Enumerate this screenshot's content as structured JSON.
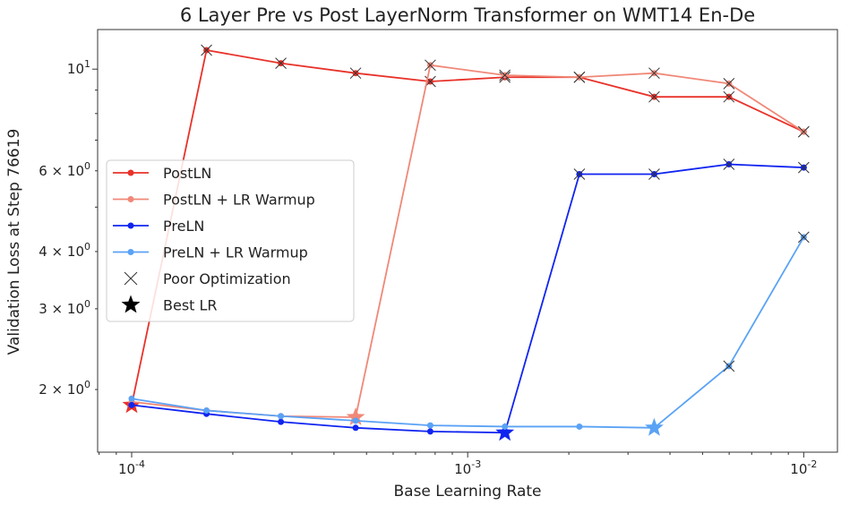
{
  "chart_data": {
    "type": "line",
    "title": "6 Layer Pre vs Post LayerNorm Transformer on WMT14 En-De",
    "xlabel": "Base Learning Rate",
    "ylabel": "Validation Loss at Step 76619",
    "xscale": "log",
    "yscale": "log",
    "xlim": [
      7.92e-05,
      0.0126
    ],
    "ylim": [
      1.46,
      12.2
    ],
    "xticks": [
      {
        "value": 0.0001,
        "label": "10^-4"
      },
      {
        "value": 0.001,
        "label": "10^-3"
      },
      {
        "value": 0.01,
        "label": "10^-2"
      }
    ],
    "yticks": [
      {
        "value": 10,
        "label": "10^1"
      },
      {
        "value": 6,
        "label": "6 × 10^0"
      },
      {
        "value": 4,
        "label": "4 × 10^0"
      },
      {
        "value": 3,
        "label": "3 × 10^0"
      },
      {
        "value": 2,
        "label": "2 × 10^0"
      }
    ],
    "grid": false,
    "legend_position": "center-left",
    "x": [
      0.0001,
      0.000167,
      0.000278,
      0.000464,
      0.000774,
      0.00129,
      0.00215,
      0.00359,
      0.00599,
      0.01
    ],
    "series": [
      {
        "name": "PostLN",
        "color": "#e8322a",
        "values": [
          1.85,
          11.0,
          10.3,
          9.8,
          9.4,
          9.6,
          9.6,
          8.7,
          8.7,
          7.3
        ],
        "poor_optimization": [
          false,
          true,
          true,
          true,
          true,
          true,
          true,
          true,
          true,
          true
        ],
        "best_index": 0
      },
      {
        "name": "PostLN + LR Warmup",
        "color": "#f08878",
        "values": [
          1.88,
          1.8,
          1.75,
          1.74,
          10.2,
          9.7,
          9.6,
          9.8,
          9.3,
          7.3
        ],
        "poor_optimization": [
          false,
          false,
          false,
          false,
          true,
          true,
          true,
          true,
          true,
          true
        ],
        "best_index": 3
      },
      {
        "name": "PreLN",
        "color": "#1024f0",
        "values": [
          1.85,
          1.77,
          1.7,
          1.65,
          1.62,
          1.61,
          5.9,
          5.9,
          6.2,
          6.1
        ],
        "poor_optimization": [
          false,
          false,
          false,
          false,
          false,
          false,
          true,
          true,
          true,
          true
        ],
        "best_index": 5
      },
      {
        "name": "PreLN + LR Warmup",
        "color": "#5aa2f5",
        "values": [
          1.91,
          1.8,
          1.75,
          1.71,
          1.67,
          1.66,
          1.66,
          1.65,
          2.25,
          4.3
        ],
        "poor_optimization": [
          false,
          false,
          false,
          false,
          false,
          false,
          false,
          false,
          true,
          true
        ],
        "best_index": 7
      }
    ],
    "legend": [
      "PostLN",
      "PostLN + LR Warmup",
      "PreLN",
      "PreLN + LR Warmup",
      "Poor Optimization",
      "Best LR"
    ]
  }
}
